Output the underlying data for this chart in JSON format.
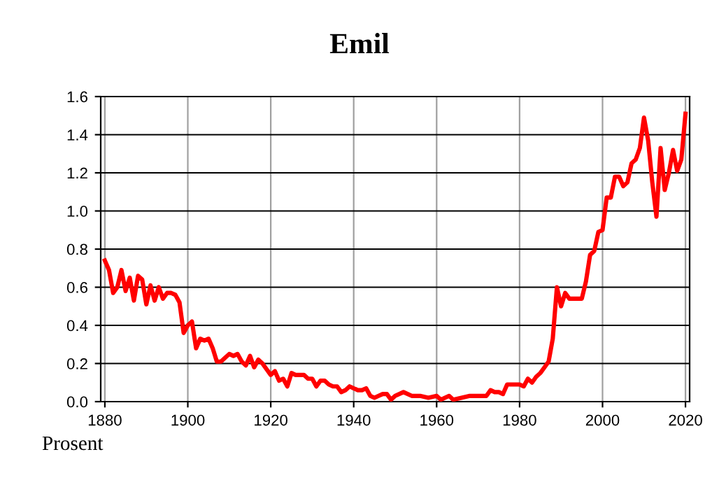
{
  "chart_data": {
    "type": "line",
    "title": "Emil",
    "ylabel": "Prosent",
    "x": [
      1880,
      1881,
      1882,
      1883,
      1884,
      1885,
      1886,
      1887,
      1888,
      1889,
      1890,
      1891,
      1892,
      1893,
      1894,
      1895,
      1896,
      1897,
      1898,
      1899,
      1900,
      1901,
      1902,
      1903,
      1904,
      1905,
      1906,
      1907,
      1908,
      1909,
      1910,
      1911,
      1912,
      1913,
      1914,
      1915,
      1916,
      1917,
      1918,
      1919,
      1920,
      1921,
      1922,
      1923,
      1924,
      1925,
      1926,
      1927,
      1928,
      1929,
      1930,
      1931,
      1932,
      1933,
      1934,
      1935,
      1936,
      1937,
      1938,
      1939,
      1940,
      1941,
      1942,
      1943,
      1944,
      1945,
      1946,
      1947,
      1948,
      1949,
      1950,
      1952,
      1954,
      1956,
      1958,
      1960,
      1961,
      1963,
      1964,
      1966,
      1968,
      1970,
      1972,
      1973,
      1974,
      1975,
      1976,
      1977,
      1979,
      1980,
      1981,
      1982,
      1983,
      1984,
      1985,
      1986,
      1987,
      1988,
      1989,
      1990,
      1991,
      1992,
      1993,
      1994,
      1995,
      1996,
      1997,
      1998,
      1999,
      2000,
      2001,
      2002,
      2003,
      2004,
      2005,
      2006,
      2007,
      2008,
      2009,
      2010,
      2011,
      2012,
      2013,
      2014,
      2015,
      2016,
      2017,
      2018,
      2019,
      2020
    ],
    "series": [
      {
        "color": "#ff0000",
        "values": [
          0.74,
          0.69,
          0.57,
          0.6,
          0.69,
          0.58,
          0.65,
          0.53,
          0.66,
          0.64,
          0.51,
          0.61,
          0.53,
          0.6,
          0.54,
          0.57,
          0.57,
          0.56,
          0.52,
          0.36,
          0.4,
          0.42,
          0.28,
          0.33,
          0.32,
          0.33,
          0.28,
          0.21,
          0.21,
          0.23,
          0.25,
          0.24,
          0.25,
          0.21,
          0.19,
          0.24,
          0.18,
          0.22,
          0.2,
          0.17,
          0.14,
          0.16,
          0.11,
          0.12,
          0.08,
          0.15,
          0.14,
          0.14,
          0.14,
          0.12,
          0.12,
          0.08,
          0.11,
          0.11,
          0.09,
          0.08,
          0.08,
          0.05,
          0.06,
          0.08,
          0.07,
          0.06,
          0.06,
          0.07,
          0.03,
          0.02,
          0.03,
          0.04,
          0.04,
          0.01,
          0.03,
          0.05,
          0.03,
          0.03,
          0.02,
          0.03,
          0.01,
          0.03,
          0.01,
          0.02,
          0.03,
          0.03,
          0.03,
          0.06,
          0.05,
          0.05,
          0.04,
          0.09,
          0.09,
          0.09,
          0.08,
          0.12,
          0.1,
          0.13,
          0.15,
          0.18,
          0.21,
          0.33,
          0.6,
          0.5,
          0.57,
          0.54,
          0.54,
          0.54,
          0.54,
          0.63,
          0.77,
          0.79,
          0.89,
          0.9,
          1.07,
          1.07,
          1.18,
          1.18,
          1.13,
          1.15,
          1.25,
          1.27,
          1.33,
          1.49,
          1.37,
          1.15,
          0.97,
          1.33,
          1.11,
          1.2,
          1.32,
          1.21,
          1.27,
          1.51
        ]
      }
    ],
    "xlim": [
      1879,
      2021
    ],
    "ylim": [
      0,
      1.6
    ],
    "xticks": [
      1880,
      1900,
      1920,
      1940,
      1960,
      1980,
      2000,
      2020
    ],
    "yticks": [
      {
        "value": 0,
        "label": "0.0"
      },
      {
        "value": 0.2,
        "label": "0.2"
      },
      {
        "value": 0.4,
        "label": "0.4"
      },
      {
        "value": 0.6,
        "label": "0.6"
      },
      {
        "value": 0.8,
        "label": "0.8"
      },
      {
        "value": 1.0,
        "label": "1.0"
      },
      {
        "value": 1.2,
        "label": "1.2"
      },
      {
        "value": 1.4,
        "label": "1.4"
      },
      {
        "value": 1.6,
        "label": "1.6"
      }
    ],
    "grid": true,
    "legend": false
  }
}
